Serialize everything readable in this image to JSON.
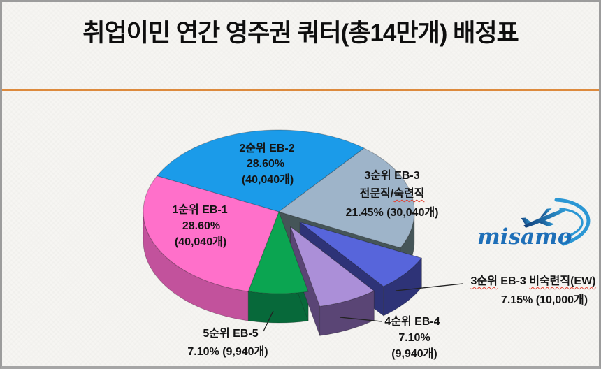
{
  "title": "취업이민 연간 영주권 쿼터(총14만개) 배정표",
  "logo": {
    "text": "misamo"
  },
  "chart_data": {
    "type": "pie",
    "style": "3d-exploded-pie",
    "title": "취업이민 연간 영주권 쿼터(총14만개) 배정표",
    "total_value": 140000,
    "total_label": "총14만개",
    "unit": "개",
    "start_angle_deg": 154,
    "direction": "clockwise",
    "slices": [
      {
        "name": "2순위 EB-2",
        "percent": 28.6,
        "count": 40040,
        "percent_label": "28.60%",
        "count_label": "(40,040개)",
        "color": "#1B9BE9",
        "side_color": "#11689E",
        "explode": 0
      },
      {
        "name": "3순위 EB-3 전문직/숙련직",
        "percent": 21.45,
        "count": 30040,
        "percent_label": "21.45%",
        "count_label": "(30,040개)",
        "color": "#9EB4C9",
        "side_color": "#455558",
        "explode": 0
      },
      {
        "name": "3순위 EB-3 비숙련직(EW)",
        "percent": 7.15,
        "count": 10000,
        "percent_label": "7.15%",
        "count_label": "(10,000개)",
        "color": "#5765DB",
        "side_color": "#2E3377",
        "explode": 0.2
      },
      {
        "name": "4순위 EB-4",
        "percent": 7.1,
        "count": 9940,
        "percent_label": "7.10%",
        "count_label": "(9,940개)",
        "color": "#AB8FD8",
        "side_color": "#5A4575",
        "explode": 0.2
      },
      {
        "name": "5순위 EB-5",
        "percent": 7.1,
        "count": 9940,
        "percent_label": "7.10%",
        "count_label": "(9,940개)",
        "color": "#0BA551",
        "side_color": "#07693A",
        "explode": 0
      },
      {
        "name": "1순위 EB-1",
        "percent": 28.6,
        "count": 40040,
        "percent_label": "28.60%",
        "count_label": "(40,040개)",
        "color": "#FF70CA",
        "side_color": "#C2529C",
        "explode": 0
      }
    ]
  },
  "labels": {
    "eb2": {
      "line1": "2순위 EB-2",
      "line2": "28.60%",
      "line3": "(40,040개)"
    },
    "eb1": {
      "line1": "1순위 EB-1",
      "line2": "28.60%",
      "line3": "(40,040개)"
    },
    "eb3": {
      "line1": "3순위 EB-3",
      "line2a": "전문직/",
      "line2b": "숙련직",
      "line3": "21.45% (30,040개)"
    },
    "eb3ew": {
      "line1a": "3순위",
      "line1b": " EB-3 ",
      "line1c": "비숙련직(EW)",
      "line2": "7.15% (10,000개)"
    },
    "eb4": {
      "line1": "4순위 EB-4",
      "line2": "7.10%",
      "line3": "(9,940개)"
    },
    "eb5": {
      "line1": "5순위 EB-5",
      "line2": "7.10% (9,940개)"
    }
  }
}
